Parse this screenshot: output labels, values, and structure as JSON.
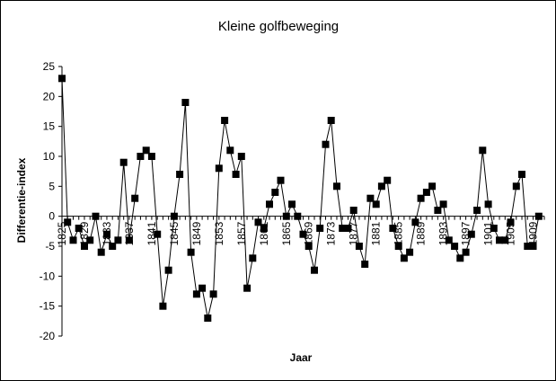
{
  "chart_data": {
    "type": "line",
    "title": "Kleine golfbeweging",
    "xlabel": "Jaar",
    "ylabel": "Differentie-index",
    "ylim": [
      -20,
      25
    ],
    "yticks": [
      -20,
      -15,
      -10,
      -5,
      0,
      5,
      10,
      15,
      20,
      25
    ],
    "xlim": [
      1825,
      1911
    ],
    "xtick_labels": [
      1825,
      1829,
      1833,
      1837,
      1841,
      1845,
      1849,
      1853,
      1857,
      1861,
      1865,
      1869,
      1873,
      1877,
      1881,
      1885,
      1889,
      1893,
      1897,
      1901,
      1905,
      1909
    ],
    "grid": false,
    "legend": "none",
    "line_color": "#000000",
    "marker": "square",
    "marker_color": "#000000",
    "series": [
      {
        "x": [
          1825,
          1826,
          1827,
          1828,
          1829,
          1830,
          1831,
          1832,
          1833,
          1834,
          1835,
          1836,
          1837,
          1838,
          1839,
          1840,
          1841,
          1842,
          1843,
          1844,
          1845,
          1846,
          1847,
          1848,
          1849,
          1850,
          1851,
          1852,
          1853,
          1854,
          1855,
          1856,
          1857,
          1858,
          1859,
          1860,
          1861,
          1862,
          1863,
          1864,
          1865,
          1866,
          1867,
          1868,
          1869,
          1870,
          1871,
          1872,
          1873,
          1874,
          1875,
          1876,
          1877,
          1878,
          1879,
          1880,
          1881,
          1882,
          1883,
          1884,
          1885,
          1886,
          1887,
          1888,
          1889,
          1890,
          1891,
          1892,
          1893,
          1894,
          1895,
          1896,
          1897,
          1898,
          1899,
          1900,
          1901,
          1902,
          1903,
          1904,
          1905,
          1906,
          1907,
          1908,
          1909,
          1910
        ],
        "values": [
          23,
          -1,
          -4,
          -2,
          -5,
          -4,
          0,
          -6,
          -3,
          -5,
          -4,
          9,
          -4,
          3,
          10,
          11,
          10,
          -3,
          -15,
          -9,
          0,
          7,
          19,
          -6,
          -13,
          -12,
          -17,
          -13,
          8,
          16,
          11,
          7,
          10,
          -12,
          -7,
          -1,
          -2,
          2,
          4,
          6,
          0,
          2,
          0,
          -3,
          -5,
          -9,
          -2,
          12,
          16,
          5,
          -2,
          -2,
          1,
          -5,
          -8,
          3,
          2,
          5,
          6,
          -2,
          -5,
          -7,
          -6,
          -1,
          3,
          4,
          5,
          1,
          2,
          -4,
          -5,
          -7,
          -6,
          -3,
          1,
          11,
          2,
          -2,
          -4,
          -4,
          -1,
          5,
          7,
          -5,
          -5,
          0
        ]
      }
    ]
  }
}
